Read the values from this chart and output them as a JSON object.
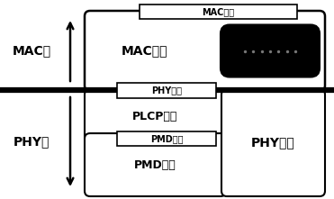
{
  "bg_color": "#ffffff",
  "line_color": "#000000",
  "text_color": "#000000",
  "mac_label": "MAC层",
  "phy_label": "PHY层",
  "mac_interface_label": "MAC接口",
  "mac_sublayer_label": "MAC子层",
  "phy_interface_label": "PHY接口",
  "plcp_label": "PLCP子层",
  "pmd_interface_label": "PMD接口",
  "pmd_label": "PMD子层",
  "phy_mgmt_label": "PHY管理",
  "fig_width": 3.71,
  "fig_height": 2.21,
  "dpi": 100
}
